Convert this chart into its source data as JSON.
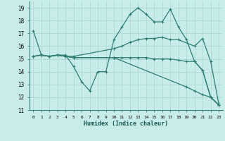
{
  "title": "",
  "xlabel": "Humidex (Indice chaleur)",
  "bg_color": "#c8ece9",
  "grid_color": "#b0dcd8",
  "line_color": "#2e7d72",
  "xlim": [
    -0.5,
    23.5
  ],
  "ylim": [
    11,
    19.5
  ],
  "yticks": [
    11,
    12,
    13,
    14,
    15,
    16,
    17,
    18,
    19
  ],
  "xticks": [
    0,
    1,
    2,
    3,
    4,
    5,
    6,
    7,
    8,
    9,
    10,
    11,
    12,
    13,
    14,
    15,
    16,
    17,
    18,
    19,
    20,
    21,
    22,
    23
  ],
  "series": [
    {
      "x": [
        0,
        1,
        2,
        3,
        4,
        5,
        6,
        7,
        8,
        9,
        10,
        11,
        12,
        13,
        14,
        15,
        16,
        17,
        18,
        19,
        20,
        21,
        22,
        23
      ],
      "y": [
        17.2,
        15.3,
        15.2,
        15.3,
        15.3,
        14.4,
        13.2,
        12.5,
        14.0,
        14.0,
        16.5,
        17.5,
        18.5,
        19.0,
        18.5,
        17.9,
        17.9,
        18.9,
        17.5,
        16.5,
        14.8,
        14.1,
        12.0,
        11.4
      ]
    },
    {
      "x": [
        0,
        1,
        2,
        3,
        4,
        5,
        10,
        11,
        12,
        13,
        14,
        15,
        16,
        17,
        18,
        20,
        21,
        22,
        23
      ],
      "y": [
        15.2,
        15.3,
        15.2,
        15.3,
        15.2,
        15.2,
        15.8,
        16.0,
        16.3,
        16.5,
        16.6,
        16.6,
        16.7,
        16.5,
        16.5,
        16.0,
        16.6,
        14.8,
        11.5
      ]
    },
    {
      "x": [
        0,
        1,
        2,
        3,
        4,
        5,
        10,
        11,
        12,
        13,
        14,
        15,
        16,
        17,
        18,
        19,
        20,
        21,
        22,
        23
      ],
      "y": [
        15.2,
        15.3,
        15.2,
        15.3,
        15.2,
        15.1,
        15.1,
        15.1,
        15.1,
        15.1,
        15.1,
        15.0,
        15.0,
        15.0,
        14.9,
        14.8,
        14.8,
        14.1,
        12.0,
        11.4
      ]
    },
    {
      "x": [
        0,
        1,
        2,
        3,
        4,
        5,
        10,
        19,
        20,
        21,
        22,
        23
      ],
      "y": [
        15.2,
        15.3,
        15.2,
        15.3,
        15.2,
        15.1,
        15.1,
        12.8,
        12.5,
        12.2,
        12.0,
        11.4
      ]
    }
  ]
}
